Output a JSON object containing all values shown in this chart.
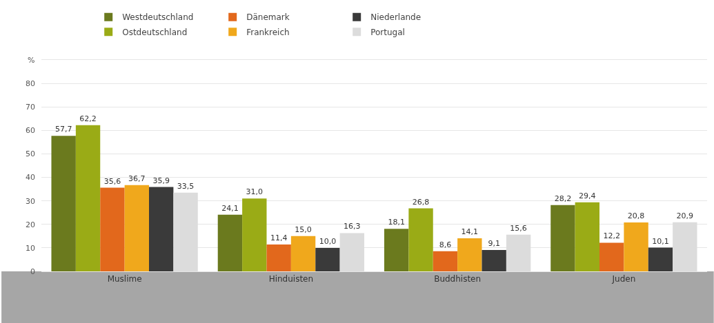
{
  "chart_data": {
    "type": "bar",
    "ylabel": "%",
    "categories": [
      "Muslime",
      "Hinduisten",
      "Buddhisten",
      "Juden"
    ],
    "series": [
      {
        "name": "Westdeutschland",
        "color": "#6b7a1e",
        "values": [
          57.7,
          24.1,
          18.1,
          28.2
        ],
        "value_labels": [
          "57,7",
          "24,1",
          "18,1",
          "28,2"
        ]
      },
      {
        "name": "Ostdeutschland",
        "color": "#9aab16",
        "values": [
          62.2,
          31.0,
          26.8,
          29.4
        ],
        "value_labels": [
          "62,2",
          "31,0",
          "26,8",
          "29,4"
        ]
      },
      {
        "name": "Dänemark",
        "color": "#e2681c",
        "values": [
          35.6,
          11.4,
          8.6,
          12.2
        ],
        "value_labels": [
          "35,6",
          "11,4",
          "8,6",
          "12,2"
        ]
      },
      {
        "name": "Frankreich",
        "color": "#f0a81c",
        "values": [
          36.7,
          15.0,
          14.1,
          20.8
        ],
        "value_labels": [
          "36,7",
          "15,0",
          "14,1",
          "20,8"
        ]
      },
      {
        "name": "Niederlande",
        "color": "#3a3a3a",
        "values": [
          35.9,
          10.0,
          9.1,
          10.1
        ],
        "value_labels": [
          "35,9",
          "10,0",
          "9,1",
          "10,1"
        ]
      },
      {
        "name": "Portugal",
        "color": "#dcdcdc",
        "values": [
          33.5,
          16.3,
          15.6,
          20.9
        ],
        "value_labels": [
          "33,5",
          "16,3",
          "15,6",
          "20,9"
        ]
      }
    ],
    "ylim": [
      0,
      90
    ],
    "yticks": [
      0,
      10,
      20,
      30,
      40,
      50,
      60,
      70,
      80
    ],
    "grid": "y",
    "legend": "top left"
  }
}
